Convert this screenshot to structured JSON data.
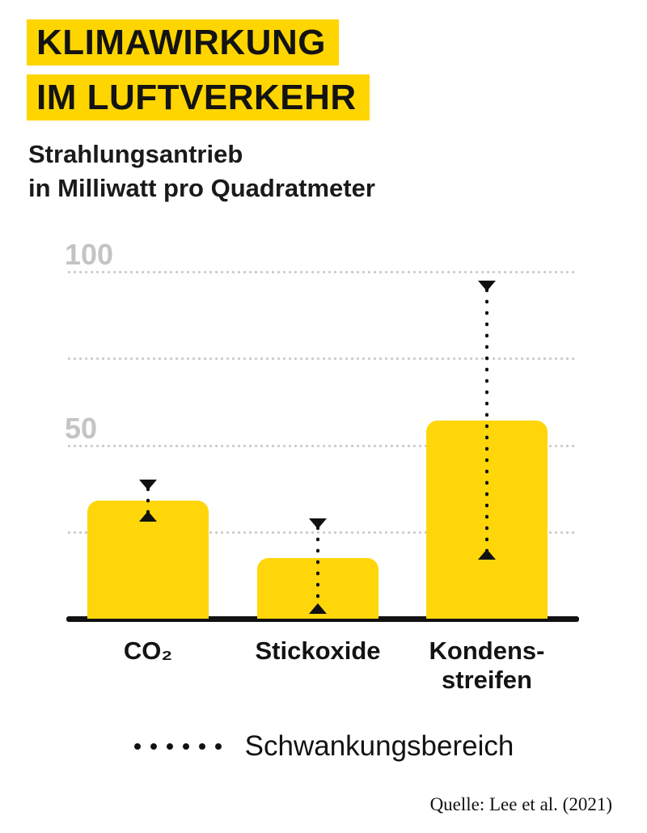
{
  "header": {
    "title_line1": "KLIMAWIRKUNG",
    "title_line2": "IM LUFTVERKEHR",
    "subtitle_line1": "Strahlungsantrieb",
    "subtitle_line2": "in Milliwatt pro Quadratmeter"
  },
  "chart_data": {
    "type": "bar",
    "title": "Klimawirkung im Luftverkehr",
    "ylabel": "Strahlungsantrieb in Milliwatt pro Quadratmeter",
    "categories": [
      "CO₂",
      "Stickoxide",
      "Kondens-\nstreifen"
    ],
    "values": [
      34,
      17.5,
      57
    ],
    "error_ranges_low_high": [
      [
        28,
        40
      ],
      [
        1.5,
        29
      ],
      [
        17,
        97.5
      ]
    ],
    "error_series_name": "Schwankungsbereich",
    "ylim": [
      0,
      105
    ],
    "ytick_values": [
      50,
      100
    ],
    "ytick_labels": [
      "50",
      "100"
    ],
    "gridline_values": [
      25,
      50,
      75,
      100
    ],
    "grid": true,
    "legend_position": "bottom",
    "bar_color": "#ffd60a",
    "grid_color": "#c9c9c9",
    "axis_label_color": "#c4c4c4"
  },
  "legend": {
    "label": "Schwankungsbereich"
  },
  "source": {
    "label": "Quelle: Lee et al. (2021)"
  },
  "colors": {
    "accent_yellow": "#ffd500",
    "text_black": "#131313",
    "background": "#ffffff"
  }
}
